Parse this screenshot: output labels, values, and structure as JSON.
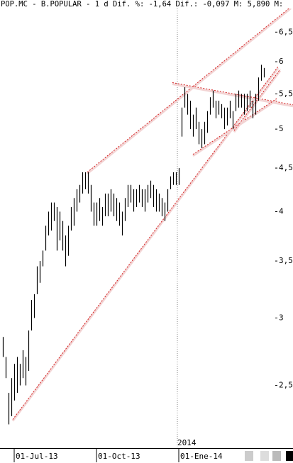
{
  "chart_data": {
    "type": "range-bar",
    "title": "POP.MC - B.POPULAR -  1 d Dif. %: -1,64 Dif.: -0,097 M: 5,890 M:",
    "log": true,
    "color": "#000000",
    "categories": [
      null,
      null,
      null,
      null,
      "01-Jul-13",
      null,
      null,
      null,
      null,
      null,
      null,
      null,
      null,
      null,
      null,
      null,
      null,
      null,
      null,
      null,
      null,
      null,
      null,
      null,
      null,
      null,
      null,
      null,
      null,
      null,
      null,
      null,
      null,
      "01-Oct-13",
      null,
      null,
      null,
      null,
      null,
      null,
      null,
      null,
      null,
      null,
      null,
      null,
      null,
      null,
      null,
      null,
      null,
      null,
      null,
      null,
      null,
      null,
      null,
      null,
      null,
      null,
      null,
      null,
      "01-Ene-14",
      null,
      null,
      null,
      null,
      null,
      null,
      null,
      null,
      null,
      null,
      null,
      null,
      null,
      null,
      null,
      null,
      null,
      null,
      null,
      null,
      null,
      null,
      null,
      null,
      null,
      null,
      null,
      null,
      null,
      null
    ],
    "year_categories": [
      null,
      null,
      null,
      null,
      null,
      null,
      null,
      null,
      null,
      null,
      null,
      null,
      null,
      null,
      null,
      null,
      null,
      null,
      null,
      null,
      null,
      null,
      null,
      null,
      null,
      null,
      null,
      null,
      null,
      null,
      null,
      null,
      null,
      null,
      null,
      null,
      null,
      null,
      null,
      null,
      null,
      null,
      null,
      null,
      null,
      null,
      null,
      null,
      null,
      null,
      null,
      null,
      null,
      null,
      null,
      null,
      null,
      null,
      null,
      null,
      null,
      null,
      "2014",
      null,
      null,
      null,
      null,
      null,
      null,
      null,
      null,
      null,
      null,
      null,
      null,
      null,
      null,
      null,
      null,
      null,
      null,
      null,
      null,
      null,
      null,
      null,
      null,
      null,
      null,
      null,
      null,
      null,
      null
    ],
    "high": [
      2.85,
      2.7,
      2.45,
      2.55,
      2.65,
      2.7,
      2.65,
      2.75,
      2.7,
      2.9,
      3.15,
      3.2,
      3.45,
      3.5,
      3.6,
      3.85,
      4.0,
      4.1,
      4.1,
      4.05,
      4.0,
      3.9,
      3.75,
      3.85,
      4.05,
      4.15,
      4.25,
      4.3,
      4.45,
      4.45,
      4.45,
      4.3,
      4.1,
      4.1,
      4.15,
      4.05,
      4.2,
      4.2,
      4.25,
      4.2,
      4.15,
      4.1,
      4.0,
      4.15,
      4.3,
      4.3,
      4.25,
      4.25,
      4.3,
      4.25,
      4.25,
      4.3,
      4.35,
      4.3,
      4.25,
      4.2,
      4.15,
      4.1,
      4.25,
      4.4,
      4.45,
      4.45,
      4.5,
      5.3,
      5.6,
      5.5,
      5.4,
      5.2,
      5.3,
      5.1,
      5.0,
      5.1,
      5.25,
      5.45,
      5.55,
      5.4,
      5.4,
      5.35,
      5.3,
      5.3,
      5.4,
      5.25,
      5.5,
      5.55,
      5.5,
      5.5,
      5.5,
      5.55,
      5.4,
      5.5,
      5.75,
      5.95,
      5.9
    ],
    "low": [
      2.7,
      2.55,
      2.25,
      2.3,
      2.4,
      2.45,
      2.5,
      2.55,
      2.5,
      2.6,
      2.9,
      3.0,
      3.2,
      3.3,
      3.45,
      3.6,
      3.75,
      3.8,
      3.9,
      3.6,
      3.7,
      3.6,
      3.45,
      3.55,
      3.8,
      3.85,
      4.0,
      4.1,
      4.2,
      4.25,
      4.2,
      4.0,
      3.85,
      3.85,
      3.9,
      3.85,
      3.95,
      3.95,
      4.0,
      3.95,
      3.9,
      3.85,
      3.75,
      3.9,
      4.05,
      4.1,
      4.0,
      4.05,
      4.1,
      4.05,
      4.0,
      4.1,
      4.15,
      4.05,
      4.0,
      4.0,
      3.95,
      3.9,
      4.0,
      4.25,
      4.3,
      4.3,
      4.3,
      4.9,
      5.3,
      5.2,
      5.0,
      4.9,
      5.0,
      4.8,
      4.75,
      4.8,
      4.95,
      5.2,
      5.3,
      5.15,
      5.2,
      5.15,
      5.0,
      5.05,
      5.15,
      5.0,
      5.25,
      5.3,
      5.3,
      5.2,
      5.25,
      5.3,
      5.15,
      5.2,
      5.4,
      5.7,
      5.75
    ],
    "trendline_color": "#d42020",
    "trendlines": [
      {
        "x": [
          29.75,
          101.5
        ],
        "values": [
          4.45,
          6.96
        ]
      },
      {
        "x": [
          3.5,
          97
        ],
        "values": [
          2.28,
          5.92
        ]
      },
      {
        "x": [
          59.75,
          102.25
        ],
        "values": [
          5.67,
          5.34
        ]
      },
      {
        "x": [
          67,
          96.5
        ],
        "values": [
          4.67,
          5.43
        ]
      },
      {
        "x": [
          81.5,
          97.75
        ],
        "values": [
          4.98,
          5.88
        ]
      }
    ],
    "ylim": [
      2.11,
      7.09
    ],
    "yticks": [
      {
        "value": 2.5,
        "label": "2,5"
      },
      3,
      {
        "value": 3.5,
        "label": "3,5"
      },
      4,
      {
        "value": 4.5,
        "label": "4,5"
      },
      5,
      {
        "value": 5.5,
        "label": "5,5"
      },
      6,
      {
        "value": 6.5,
        "label": "6,5"
      }
    ]
  }
}
